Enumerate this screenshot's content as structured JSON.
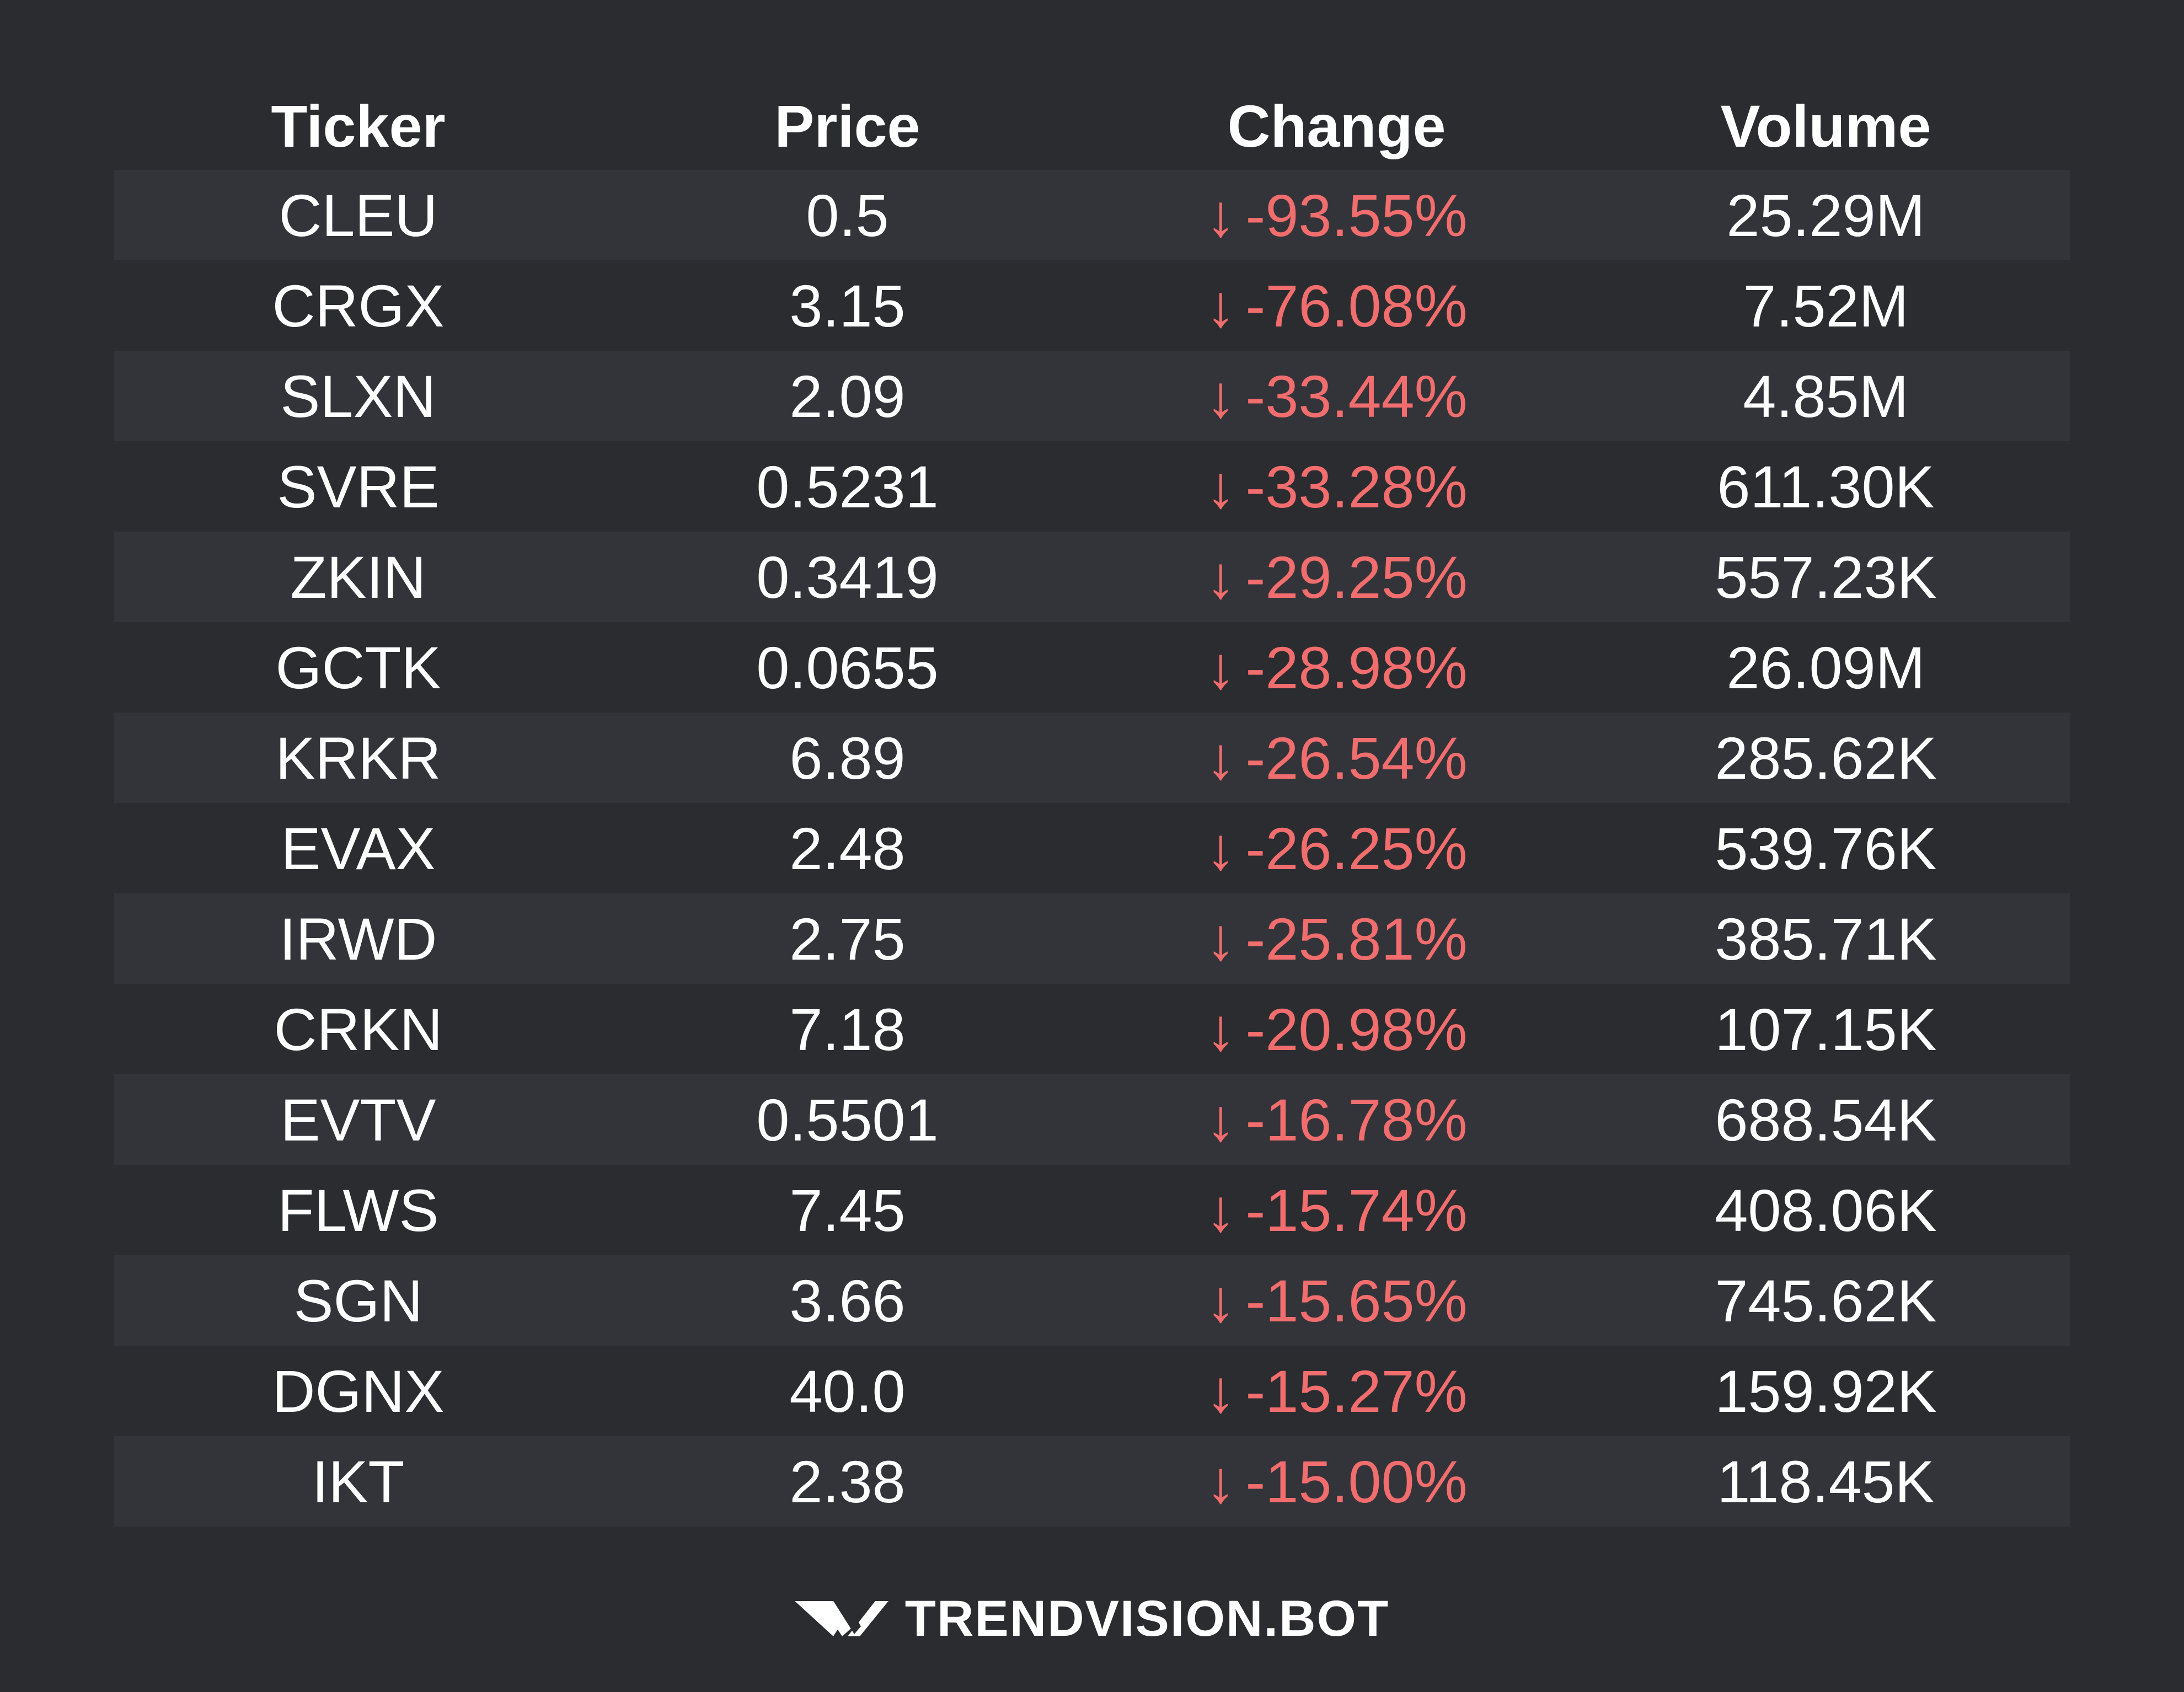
{
  "table": {
    "headers": {
      "ticker": "Ticker",
      "price": "Price",
      "change": "Change",
      "volume": "Volume"
    },
    "change_color": "#f26d6d",
    "change_arrow": "↓",
    "rows": [
      {
        "ticker": "CLEU",
        "price": "0.5",
        "change": "-93.55%",
        "volume": "25.29M"
      },
      {
        "ticker": "CRGX",
        "price": "3.15",
        "change": "-76.08%",
        "volume": "7.52M"
      },
      {
        "ticker": "SLXN",
        "price": "2.09",
        "change": "-33.44%",
        "volume": "4.85M"
      },
      {
        "ticker": "SVRE",
        "price": "0.5231",
        "change": "-33.28%",
        "volume": "611.30K"
      },
      {
        "ticker": "ZKIN",
        "price": "0.3419",
        "change": "-29.25%",
        "volume": "557.23K"
      },
      {
        "ticker": "GCTK",
        "price": "0.0655",
        "change": "-28.98%",
        "volume": "26.09M"
      },
      {
        "ticker": "KRKR",
        "price": "6.89",
        "change": "-26.54%",
        "volume": "285.62K"
      },
      {
        "ticker": "EVAX",
        "price": "2.48",
        "change": "-26.25%",
        "volume": "539.76K"
      },
      {
        "ticker": "IRWD",
        "price": "2.75",
        "change": "-25.81%",
        "volume": "385.71K"
      },
      {
        "ticker": "CRKN",
        "price": "7.18",
        "change": "-20.98%",
        "volume": "107.15K"
      },
      {
        "ticker": "EVTV",
        "price": "0.5501",
        "change": "-16.78%",
        "volume": "688.54K"
      },
      {
        "ticker": "FLWS",
        "price": "7.45",
        "change": "-15.74%",
        "volume": "408.06K"
      },
      {
        "ticker": "SGN",
        "price": "3.66",
        "change": "-15.65%",
        "volume": "745.62K"
      },
      {
        "ticker": "DGNX",
        "price": "40.0",
        "change": "-15.27%",
        "volume": "159.92K"
      },
      {
        "ticker": "IKT",
        "price": "2.38",
        "change": "-15.00%",
        "volume": "118.45K"
      }
    ]
  },
  "footer": {
    "brand": "TRENDVISION.BOT",
    "logo_icon": "trendvision-logo-icon"
  }
}
